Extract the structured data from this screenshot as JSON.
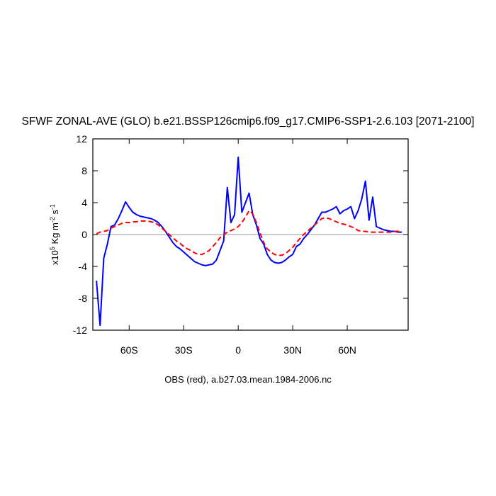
{
  "chart_data": {
    "type": "line",
    "title": "SFWF ZONAL-AVE (GLO) b.e21.BSSP126cmip6.f09_g17.CMIP6-SSP1-2.6.103 [2071-2100]",
    "subtitle": "OBS (red), a.b27.03.mean.1984-2006.nc",
    "ylabel": [
      "x10",
      "5",
      " Kg m",
      "-2",
      " s",
      "-1"
    ],
    "x": [
      -78,
      -76,
      -74,
      -72,
      -70,
      -68,
      -66,
      -64,
      -62,
      -60,
      -58,
      -56,
      -54,
      -52,
      -50,
      -48,
      -46,
      -44,
      -42,
      -40,
      -38,
      -36,
      -34,
      -32,
      -30,
      -28,
      -26,
      -24,
      -22,
      -20,
      -18,
      -16,
      -14,
      -12,
      -10,
      -8,
      -6,
      -4,
      -2,
      0,
      2,
      4,
      6,
      8,
      10,
      12,
      14,
      16,
      18,
      20,
      22,
      24,
      26,
      28,
      30,
      32,
      34,
      36,
      38,
      40,
      42,
      44,
      46,
      48,
      50,
      52,
      54,
      56,
      58,
      60,
      62,
      64,
      66,
      68,
      70,
      72,
      74,
      76,
      78,
      80,
      82,
      84,
      86,
      88,
      90
    ],
    "series": [
      {
        "color": "#0000ff",
        "dashed": false,
        "values": [
          -5.8,
          -11.4,
          -3.0,
          -1.2,
          1.0,
          1.2,
          2.0,
          3.0,
          4.1,
          3.4,
          2.8,
          2.5,
          2.3,
          2.2,
          2.1,
          2.0,
          1.8,
          1.5,
          1.0,
          0.4,
          -0.3,
          -1.0,
          -1.5,
          -1.8,
          -2.2,
          -2.6,
          -3.0,
          -3.4,
          -3.6,
          -3.8,
          -3.9,
          -3.8,
          -3.7,
          -3.2,
          -2.0,
          -0.8,
          5.9,
          1.5,
          2.5,
          9.7,
          2.8,
          4.0,
          5.2,
          2.5,
          1.2,
          -0.5,
          -1.2,
          -2.5,
          -3.2,
          -3.5,
          -3.6,
          -3.5,
          -3.2,
          -2.8,
          -2.5,
          -1.5,
          -1.2,
          -0.5,
          0.0,
          0.6,
          1.2,
          2.0,
          2.8,
          2.8,
          3.0,
          3.2,
          3.5,
          2.6,
          3.0,
          3.2,
          3.5,
          2.0,
          3.0,
          4.5,
          6.7,
          1.8,
          4.7,
          1.0,
          0.8,
          0.6,
          0.5,
          0.4,
          0.4,
          0.3,
          0.3
        ]
      },
      {
        "color": "#ff0000",
        "dashed": true,
        "values": [
          0.1,
          0.3,
          0.4,
          0.5,
          0.8,
          1.0,
          1.2,
          1.4,
          1.5,
          1.5,
          1.6,
          1.6,
          1.7,
          1.7,
          1.7,
          1.6,
          1.5,
          1.2,
          0.8,
          0.4,
          0.0,
          -0.4,
          -0.8,
          -1.1,
          -1.5,
          -1.8,
          -2.0,
          -2.3,
          -2.5,
          -2.5,
          -2.3,
          -2.0,
          -1.5,
          -1.0,
          -0.4,
          0.0,
          0.3,
          0.5,
          0.7,
          1.0,
          1.5,
          2.2,
          3.0,
          2.6,
          1.5,
          0.2,
          -1.0,
          -1.8,
          -2.2,
          -2.5,
          -2.6,
          -2.6,
          -2.4,
          -2.0,
          -1.6,
          -1.0,
          -0.5,
          0.0,
          0.4,
          0.8,
          1.2,
          1.6,
          2.0,
          2.1,
          2.0,
          1.8,
          1.6,
          1.4,
          1.3,
          1.2,
          1.0,
          0.8,
          0.5,
          0.4,
          0.4,
          0.3,
          0.3,
          0.3,
          0.3,
          0.3,
          0.3,
          0.3,
          0.4,
          0.4,
          0.4
        ]
      }
    ],
    "xlim": [
      -80,
      93.5
    ],
    "xticks": [
      {
        "value": -60,
        "label": "60S"
      },
      {
        "value": -30,
        "label": "30S"
      },
      0,
      {
        "value": 30,
        "label": "30N"
      },
      {
        "value": 60,
        "label": "60N"
      }
    ],
    "ylim": [
      -12,
      12
    ],
    "yticks": [
      -12,
      -8,
      -4,
      0,
      4,
      8,
      12
    ]
  }
}
